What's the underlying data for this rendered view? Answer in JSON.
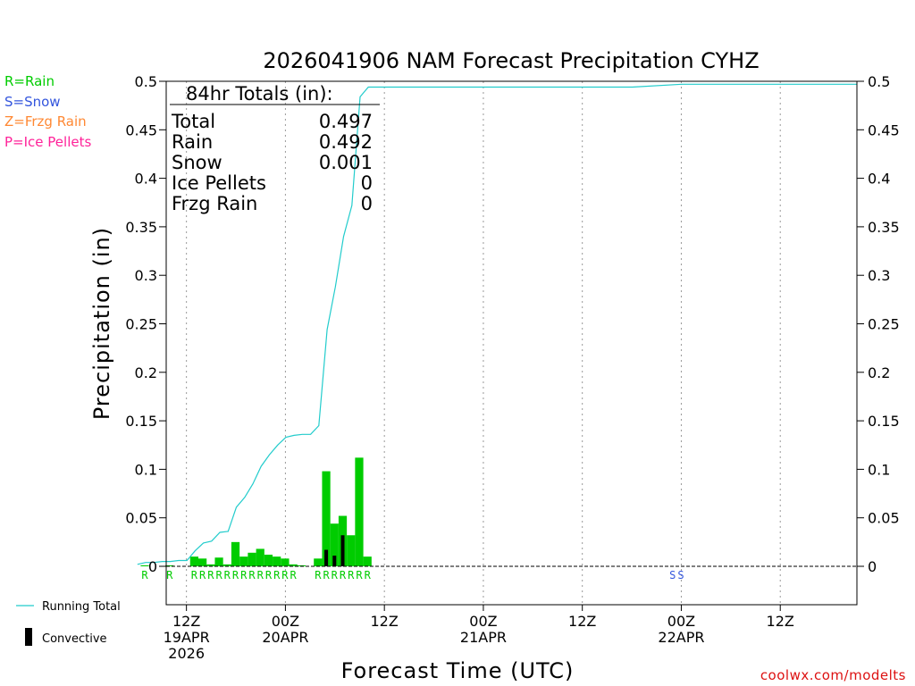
{
  "colors": {
    "rain": "#00cc00",
    "snow": "#3355dd",
    "frzg_rain": "#ff8833",
    "ice_pellets": "#ff2299",
    "running_total": "#22cccc",
    "convective": "#000000",
    "credit": "#dd1111",
    "grid": "#999999"
  },
  "legend": {
    "rain": "R=Rain",
    "snow": "S=Snow",
    "frzg_rain": "Z=Frzg Rain",
    "ice_pellets": "P=Ice Pellets",
    "running_total": "Running Total",
    "convective": "Convective"
  },
  "totals": {
    "header": "84hr Totals (in):",
    "rows": [
      {
        "label": "Total",
        "value": "0.497"
      },
      {
        "label": "Rain",
        "value": "0.492"
      },
      {
        "label": "Snow",
        "value": "0.001"
      },
      {
        "label": "Ice Pellets",
        "value": "0"
      },
      {
        "label": "Frzg Rain",
        "value": "0"
      }
    ]
  },
  "credit": "coolwx.com/modelts",
  "chart_data": {
    "type": "bar",
    "title": "2026041906 NAM Forecast Precipitation CYHZ",
    "xlabel": "Forecast Time (UTC)",
    "ylabel": "Precipitation (in)",
    "ylim": [
      0,
      0.5
    ],
    "xlim_hours": [
      0,
      84
    ],
    "x_unit": "forecast hour (from 06Z 19APR)",
    "y_ticks": [
      0,
      0.05,
      0.1,
      0.15,
      0.2,
      0.25,
      0.3,
      0.35,
      0.4,
      0.45,
      0.5
    ],
    "y_tick_labels": [
      "0",
      "0.05",
      "0.1",
      "0.15",
      "0.2",
      "0.25",
      "0.3",
      "0.35",
      "0.4",
      "0.45",
      "0.5"
    ],
    "x_ticks": [
      {
        "hour": 6,
        "labels": [
          "12Z",
          "19APR",
          "2026"
        ]
      },
      {
        "hour": 18,
        "labels": [
          "00Z",
          "20APR"
        ]
      },
      {
        "hour": 30,
        "labels": [
          "12Z"
        ]
      },
      {
        "hour": 42,
        "labels": [
          "00Z",
          "21APR"
        ]
      },
      {
        "hour": 54,
        "labels": [
          "12Z"
        ]
      },
      {
        "hour": 66,
        "labels": [
          "00Z",
          "22APR"
        ]
      },
      {
        "hour": 78,
        "labels": [
          "12Z"
        ]
      }
    ],
    "hourly_bars": {
      "name": "Hourly Precipitation (Rain)",
      "bar_width_hours": 1,
      "points": [
        {
          "hour": 1,
          "value": 0.001
        },
        {
          "hour": 4,
          "value": 0.001
        },
        {
          "hour": 7,
          "value": 0.01
        },
        {
          "hour": 8,
          "value": 0.008
        },
        {
          "hour": 9,
          "value": 0.002
        },
        {
          "hour": 10,
          "value": 0.009
        },
        {
          "hour": 11,
          "value": 0.002
        },
        {
          "hour": 12,
          "value": 0.025
        },
        {
          "hour": 13,
          "value": 0.01
        },
        {
          "hour": 14,
          "value": 0.014
        },
        {
          "hour": 15,
          "value": 0.018
        },
        {
          "hour": 16,
          "value": 0.012
        },
        {
          "hour": 17,
          "value": 0.01
        },
        {
          "hour": 18,
          "value": 0.008
        },
        {
          "hour": 19,
          "value": 0.002
        },
        {
          "hour": 20,
          "value": 0.001
        },
        {
          "hour": 22,
          "value": 0.008
        },
        {
          "hour": 23,
          "value": 0.098
        },
        {
          "hour": 24,
          "value": 0.044
        },
        {
          "hour": 25,
          "value": 0.052
        },
        {
          "hour": 26,
          "value": 0.032
        },
        {
          "hour": 27,
          "value": 0.112
        },
        {
          "hour": 28,
          "value": 0.01
        }
      ]
    },
    "convective_bars": {
      "name": "Convective",
      "points": [
        {
          "hour": 23,
          "value": 0.017
        },
        {
          "hour": 24,
          "value": 0.011
        },
        {
          "hour": 25,
          "value": 0.032
        }
      ]
    },
    "running_total": {
      "name": "Running Total",
      "x": [
        0,
        1,
        2,
        3,
        4,
        5,
        6,
        7,
        8,
        9,
        10,
        11,
        12,
        13,
        14,
        15,
        16,
        17,
        18,
        19,
        20,
        21,
        22,
        23,
        24,
        25,
        26,
        27,
        28,
        29,
        30,
        40,
        50,
        60,
        66,
        70,
        84
      ],
      "y": [
        0.002,
        0.004,
        0.004,
        0.005,
        0.005,
        0.006,
        0.006,
        0.016,
        0.024,
        0.026,
        0.035,
        0.036,
        0.061,
        0.071,
        0.085,
        0.103,
        0.115,
        0.125,
        0.133,
        0.135,
        0.136,
        0.136,
        0.145,
        0.244,
        0.288,
        0.34,
        0.372,
        0.484,
        0.494,
        0.494,
        0.494,
        0.494,
        0.494,
        0.494,
        0.497,
        0.497,
        0.497
      ]
    },
    "ptype_labels": [
      {
        "hour": 1,
        "text": "R"
      },
      {
        "hour": 4,
        "text": "R"
      },
      {
        "hour": 7,
        "text": "R"
      },
      {
        "hour": 8,
        "text": "R"
      },
      {
        "hour": 9,
        "text": "R"
      },
      {
        "hour": 10,
        "text": "R"
      },
      {
        "hour": 11,
        "text": "R"
      },
      {
        "hour": 12,
        "text": "R"
      },
      {
        "hour": 13,
        "text": "R"
      },
      {
        "hour": 14,
        "text": "R"
      },
      {
        "hour": 15,
        "text": "R"
      },
      {
        "hour": 16,
        "text": "R"
      },
      {
        "hour": 17,
        "text": "R"
      },
      {
        "hour": 18,
        "text": "R"
      },
      {
        "hour": 19,
        "text": "R"
      },
      {
        "hour": 22,
        "text": "R"
      },
      {
        "hour": 23,
        "text": "R"
      },
      {
        "hour": 24,
        "text": "R"
      },
      {
        "hour": 25,
        "text": "R"
      },
      {
        "hour": 26,
        "text": "R"
      },
      {
        "hour": 27,
        "text": "R"
      },
      {
        "hour": 28,
        "text": "R"
      },
      {
        "hour": 65,
        "text": "S"
      },
      {
        "hour": 66,
        "text": "S"
      }
    ]
  }
}
